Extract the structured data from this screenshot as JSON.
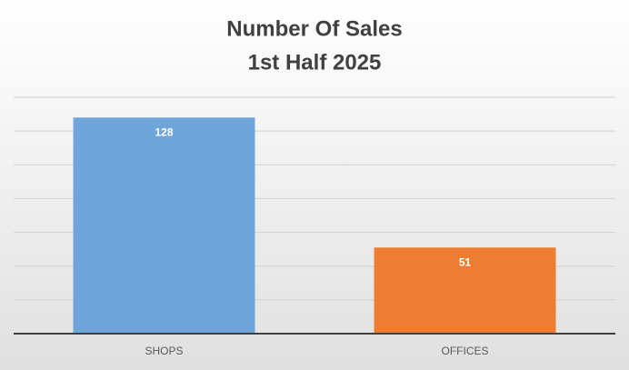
{
  "chart_data": {
    "type": "bar",
    "title": "Number Of Sales",
    "subtitle": "1st Half 2025",
    "categories": [
      "SHOPS",
      "OFFICES"
    ],
    "values": [
      128,
      51
    ],
    "colors": [
      "#6fa5da",
      "#ed7d31"
    ],
    "ylim": [
      0,
      140
    ],
    "yticks": [
      0,
      20,
      40,
      60,
      80,
      100,
      120,
      140
    ],
    "grid": true
  }
}
